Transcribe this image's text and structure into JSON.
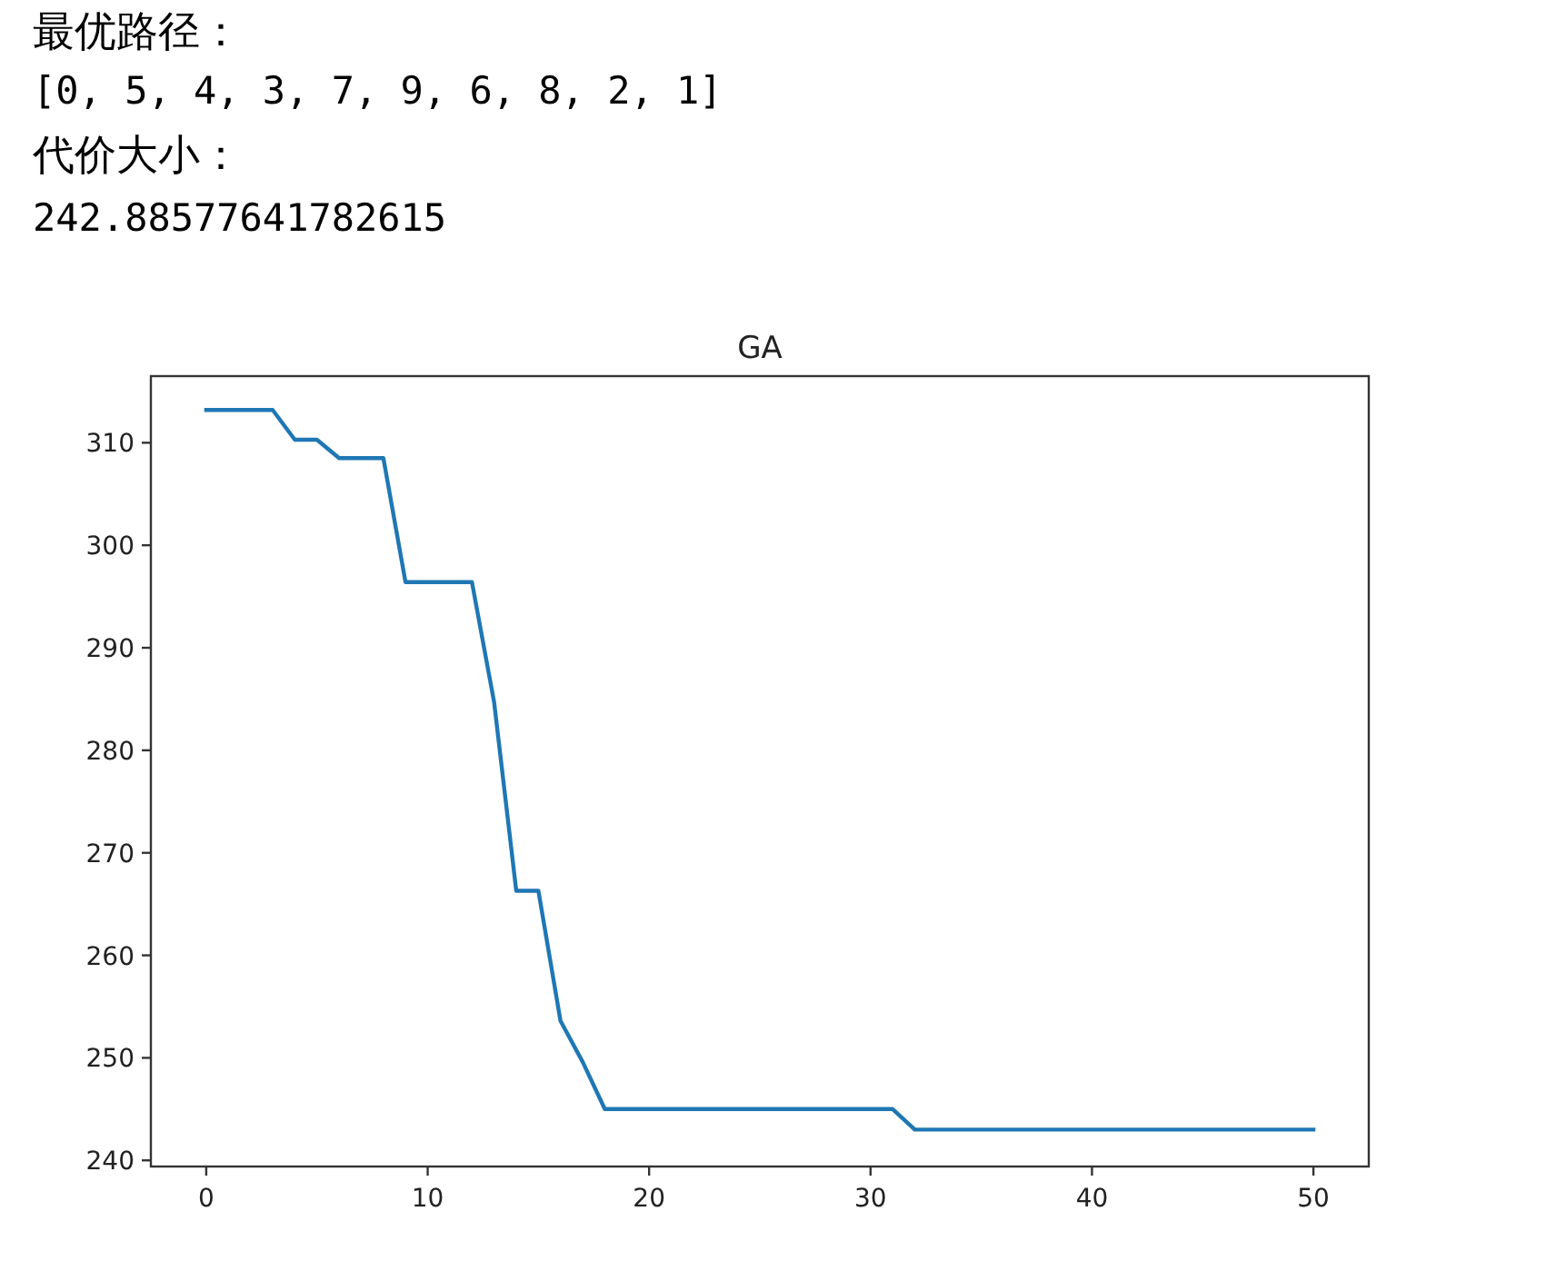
{
  "chart_data": {
    "type": "line",
    "title": "GA",
    "annotations": [
      "最优路径：",
      "[0, 5, 4, 3, 7, 9, 6, 8, 2, 1]",
      "代价大小：",
      "242.88577641782615"
    ],
    "x": [
      0,
      1,
      2,
      3,
      4,
      5,
      6,
      7,
      8,
      9,
      10,
      11,
      12,
      13,
      14,
      15,
      16,
      17,
      18,
      19,
      20,
      21,
      22,
      23,
      24,
      25,
      26,
      27,
      28,
      29,
      30,
      31,
      32,
      33,
      34,
      35,
      36,
      37,
      38,
      39,
      40,
      41,
      42,
      43,
      44,
      45,
      46,
      47,
      48,
      49,
      50
    ],
    "series": [
      {
        "color": "#1f77b4",
        "values": [
          313.2,
          313.2,
          313.2,
          313.2,
          310.3,
          310.3,
          308.5,
          308.5,
          308.5,
          296.4,
          296.4,
          296.4,
          296.4,
          284.7,
          266.3,
          266.3,
          253.6,
          249.6,
          245.0,
          245.0,
          245.0,
          245.0,
          245.0,
          245.0,
          245.0,
          245.0,
          245.0,
          245.0,
          245.0,
          245.0,
          245.0,
          245.0,
          243.0,
          243.0,
          243.0,
          243.0,
          243.0,
          243.0,
          243.0,
          243.0,
          243.0,
          243.0,
          243.0,
          243.0,
          243.0,
          243.0,
          243.0,
          243.0,
          243.0,
          243.0,
          243.0
        ]
      }
    ],
    "xlim": [
      -2.5,
      52.5
    ],
    "ylim": [
      239.4,
      316.5
    ],
    "xticks": [
      0,
      10,
      20,
      30,
      40,
      50
    ],
    "yticks": [
      240,
      250,
      260,
      270,
      280,
      290,
      300,
      310
    ],
    "grid": false
  }
}
